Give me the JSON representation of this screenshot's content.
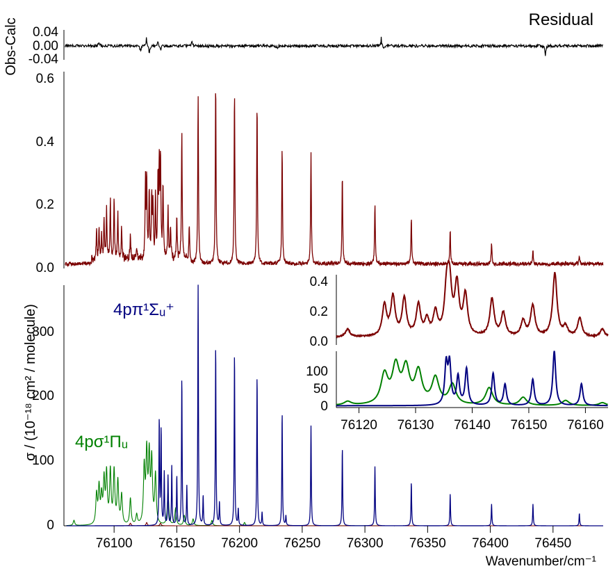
{
  "figure": {
    "xlabel": "Wavenumber/cm⁻¹",
    "xticks": [
      76100,
      76150,
      76200,
      76250,
      76300,
      76350,
      76400,
      76450
    ],
    "xlim": [
      76060,
      76490
    ]
  },
  "residual_panel": {
    "title": "Residual",
    "ylabel": "Obs-Calc",
    "yticks": [
      "0.04",
      "0.00",
      "-0.04"
    ],
    "ylim": [
      -0.06,
      0.06
    ]
  },
  "observed_panel": {
    "yticks": [
      "0.0",
      "0.2",
      "0.4",
      "0.6"
    ],
    "ylim": [
      -0.01,
      0.63
    ]
  },
  "model_panel": {
    "ylabel": "σ / (10⁻¹⁸ cm² / molecule)",
    "yticks": [
      "0",
      "100",
      "200",
      "300"
    ],
    "ylim": [
      0,
      365
    ],
    "label_sigma_u": "4pπ¹Σᵤ⁺",
    "label_pi_u": "4pσ¹Πᵤ"
  },
  "inset": {
    "top_yticks": [
      "0.0",
      "0.2",
      "0.4"
    ],
    "top_ylim": [
      -0.02,
      0.42
    ],
    "bottom_yticks": [
      "0",
      "50",
      "100"
    ],
    "bottom_ylim": [
      -5,
      150
    ],
    "xticks": [
      "76120",
      "76130",
      "76140",
      "76150",
      "76160"
    ],
    "xlim": [
      76116,
      76164
    ]
  },
  "chart_data": [
    {
      "type": "line",
      "panel": "residual",
      "title": "Residual",
      "ylabel": "Obs-Calc",
      "xlim": [
        76060,
        76490
      ],
      "ylim": [
        -0.06,
        0.06
      ],
      "series": [
        {
          "color": "#000000",
          "noise_amplitude": 0.006,
          "spikes": [
            {
              "x": 76088,
              "y": 0.02
            },
            {
              "x": 76121,
              "y": -0.035
            },
            {
              "x": 76126,
              "y": 0.045
            },
            {
              "x": 76128,
              "y": -0.04
            },
            {
              "x": 76135,
              "y": 0.03
            },
            {
              "x": 76137,
              "y": -0.03
            },
            {
              "x": 76162,
              "y": 0.02
            },
            {
              "x": 76230,
              "y": -0.015
            },
            {
              "x": 76313,
              "y": 0.04
            },
            {
              "x": 76315,
              "y": -0.02
            },
            {
              "x": 76444,
              "y": -0.045
            }
          ]
        }
      ]
    },
    {
      "type": "line",
      "panel": "observed",
      "xlim": [
        76060,
        76490
      ],
      "ylim": [
        -0.01,
        0.63
      ],
      "series": [
        {
          "color": "#7b0000",
          "baseline": 0.005,
          "peaks": [
            {
              "x": 76086,
              "y": 0.09
            },
            {
              "x": 76088,
              "y": 0.1
            },
            {
              "x": 76090,
              "y": 0.08
            },
            {
              "x": 76092,
              "y": 0.14
            },
            {
              "x": 76094,
              "y": 0.16
            },
            {
              "x": 76097,
              "y": 0.19
            },
            {
              "x": 76100,
              "y": 0.19
            },
            {
              "x": 76103,
              "y": 0.15
            },
            {
              "x": 76106,
              "y": 0.1
            },
            {
              "x": 76113,
              "y": 0.09
            },
            {
              "x": 76118,
              "y": 0.035
            },
            {
              "x": 76125,
              "y": 0.24
            },
            {
              "x": 76126,
              "y": 0.26
            },
            {
              "x": 76128,
              "y": 0.22
            },
            {
              "x": 76130,
              "y": 0.2
            },
            {
              "x": 76131,
              "y": 0.17
            },
            {
              "x": 76133,
              "y": 0.2
            },
            {
              "x": 76135,
              "y": 0.26
            },
            {
              "x": 76136,
              "y": 0.29
            },
            {
              "x": 76137,
              "y": 0.33
            },
            {
              "x": 76139,
              "y": 0.25
            },
            {
              "x": 76143,
              "y": 0.17
            },
            {
              "x": 76145,
              "y": 0.11
            },
            {
              "x": 76150,
              "y": 0.14
            },
            {
              "x": 76154,
              "y": 0.41
            },
            {
              "x": 76160,
              "y": 0.12
            },
            {
              "x": 76167,
              "y": 0.55
            },
            {
              "x": 76181,
              "y": 0.6
            },
            {
              "x": 76196,
              "y": 0.57
            },
            {
              "x": 76214,
              "y": 0.53
            },
            {
              "x": 76234,
              "y": 0.38
            },
            {
              "x": 76257,
              "y": 0.36
            },
            {
              "x": 76282,
              "y": 0.29
            },
            {
              "x": 76308,
              "y": 0.2
            },
            {
              "x": 76337,
              "y": 0.15
            },
            {
              "x": 76368,
              "y": 0.11
            },
            {
              "x": 76401,
              "y": 0.07
            },
            {
              "x": 76434,
              "y": 0.04
            },
            {
              "x": 76471,
              "y": 0.025
            }
          ]
        }
      ]
    },
    {
      "type": "line",
      "panel": "model",
      "ylabel": "σ / (10⁻¹⁸ cm² / molecule)",
      "xlim": [
        76060,
        76490
      ],
      "ylim": [
        0,
        365
      ],
      "series": [
        {
          "name": "4pπ¹Σᵤ⁺",
          "color": "#000080",
          "peaks": [
            {
              "x": 76136,
              "y": 160
            },
            {
              "x": 76137.5,
              "y": 145
            },
            {
              "x": 76140,
              "y": 80
            },
            {
              "x": 76143,
              "y": 75
            },
            {
              "x": 76146,
              "y": 90
            },
            {
              "x": 76150,
              "y": 75
            },
            {
              "x": 76154,
              "y": 225
            },
            {
              "x": 76158,
              "y": 60
            },
            {
              "x": 76167,
              "y": 365
            },
            {
              "x": 76171,
              "y": 45
            },
            {
              "x": 76181,
              "y": 273
            },
            {
              "x": 76184,
              "y": 35
            },
            {
              "x": 76196,
              "y": 262
            },
            {
              "x": 76199,
              "y": 25
            },
            {
              "x": 76214,
              "y": 228
            },
            {
              "x": 76218,
              "y": 20
            },
            {
              "x": 76234,
              "y": 172
            },
            {
              "x": 76237,
              "y": 15
            },
            {
              "x": 76257,
              "y": 152
            },
            {
              "x": 76282,
              "y": 118
            },
            {
              "x": 76308,
              "y": 90
            },
            {
              "x": 76337,
              "y": 66
            },
            {
              "x": 76368,
              "y": 48
            },
            {
              "x": 76401,
              "y": 33
            },
            {
              "x": 76434,
              "y": 33
            },
            {
              "x": 76471,
              "y": 19
            }
          ]
        },
        {
          "name": "4pσ¹Πᵤ",
          "color": "#008000",
          "peaks": [
            {
              "x": 76068,
              "y": 8
            },
            {
              "x": 76086,
              "y": 45
            },
            {
              "x": 76088,
              "y": 55
            },
            {
              "x": 76090,
              "y": 40
            },
            {
              "x": 76092,
              "y": 65
            },
            {
              "x": 76094,
              "y": 75
            },
            {
              "x": 76097,
              "y": 80
            },
            {
              "x": 76100,
              "y": 80
            },
            {
              "x": 76103,
              "y": 65
            },
            {
              "x": 76106,
              "y": 45
            },
            {
              "x": 76113,
              "y": 40
            },
            {
              "x": 76118,
              "y": 15
            },
            {
              "x": 76124,
              "y": 85
            },
            {
              "x": 76126,
              "y": 105
            },
            {
              "x": 76128,
              "y": 100
            },
            {
              "x": 76130,
              "y": 95
            },
            {
              "x": 76133,
              "y": 75
            },
            {
              "x": 76143,
              "y": 50
            },
            {
              "x": 76149,
              "y": 25
            },
            {
              "x": 76156,
              "y": 15
            },
            {
              "x": 76163,
              "y": 10
            },
            {
              "x": 76178,
              "y": 8
            },
            {
              "x": 76204,
              "y": 5
            }
          ]
        },
        {
          "color": "#7b0000",
          "peaks": [
            {
              "x": 76113,
              "y": 4
            },
            {
              "x": 76126,
              "y": 5
            },
            {
              "x": 76137,
              "y": 4
            }
          ]
        }
      ]
    },
    {
      "type": "line",
      "panel": "inset_observed",
      "xlim": [
        76116,
        76164
      ],
      "ylim": [
        -0.02,
        0.42
      ],
      "series": [
        {
          "color": "#7b0000",
          "baseline": 0.03,
          "peaks": [
            {
              "x": 76118,
              "y": 0.05
            },
            {
              "x": 76124.5,
              "y": 0.2
            },
            {
              "x": 76126,
              "y": 0.25
            },
            {
              "x": 76128,
              "y": 0.24
            },
            {
              "x": 76130.5,
              "y": 0.2
            },
            {
              "x": 76132,
              "y": 0.1
            },
            {
              "x": 76133.5,
              "y": 0.15
            },
            {
              "x": 76135.5,
              "y": 0.28
            },
            {
              "x": 76136,
              "y": 0.3
            },
            {
              "x": 76137.3,
              "y": 0.32
            },
            {
              "x": 76138.8,
              "y": 0.26
            },
            {
              "x": 76143.5,
              "y": 0.24
            },
            {
              "x": 76145.5,
              "y": 0.15
            },
            {
              "x": 76149,
              "y": 0.1
            },
            {
              "x": 76150.7,
              "y": 0.2
            },
            {
              "x": 76154.6,
              "y": 0.41
            },
            {
              "x": 76156.5,
              "y": 0.06
            },
            {
              "x": 76159,
              "y": 0.12
            },
            {
              "x": 76163,
              "y": 0.05
            }
          ]
        }
      ]
    },
    {
      "type": "line",
      "panel": "inset_model",
      "xlim": [
        76116,
        76164
      ],
      "ylim": [
        -5,
        150
      ],
      "series": [
        {
          "color": "#008000",
          "peaks": [
            {
              "x": 76118,
              "y": 10
            },
            {
              "x": 76124.5,
              "y": 80
            },
            {
              "x": 76126.5,
              "y": 100
            },
            {
              "x": 76128.3,
              "y": 95
            },
            {
              "x": 76130.5,
              "y": 88
            },
            {
              "x": 76133.5,
              "y": 72
            },
            {
              "x": 76136.5,
              "y": 55
            },
            {
              "x": 76143,
              "y": 48
            },
            {
              "x": 76149,
              "y": 22
            },
            {
              "x": 76156.5,
              "y": 14
            },
            {
              "x": 76163,
              "y": 8
            }
          ]
        },
        {
          "color": "#000080",
          "peaks": [
            {
              "x": 76135.4,
              "y": 110
            },
            {
              "x": 76136,
              "y": 110
            },
            {
              "x": 76137.5,
              "y": 78
            },
            {
              "x": 76139,
              "y": 100
            },
            {
              "x": 76143.7,
              "y": 88
            },
            {
              "x": 76145.8,
              "y": 58
            },
            {
              "x": 76150.7,
              "y": 72
            },
            {
              "x": 76154.5,
              "y": 150
            },
            {
              "x": 76159.3,
              "y": 60
            }
          ]
        },
        {
          "color": "#7b0000",
          "peaks": [
            {
              "x": 76126,
              "y": 3
            },
            {
              "x": 76137,
              "y": 3
            }
          ]
        }
      ]
    }
  ]
}
